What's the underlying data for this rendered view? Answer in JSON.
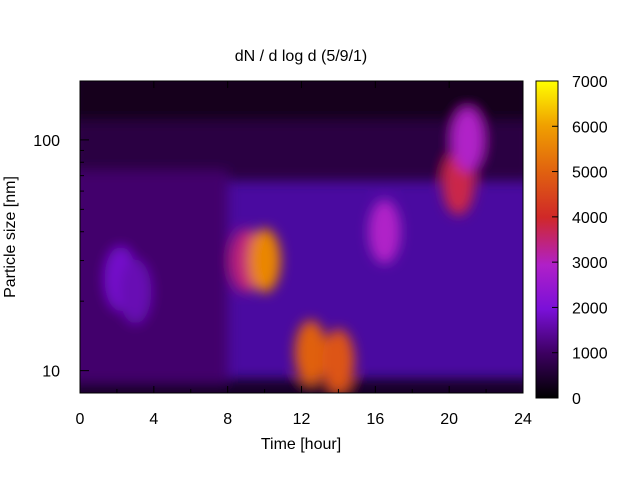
{
  "chart_data": {
    "type": "heatmap",
    "title": "dN / d log d (5/9/1)",
    "xlabel": "Time [hour]",
    "ylabel": "Particle size [nm]",
    "x_range": [
      0,
      24
    ],
    "y_range": [
      8,
      180
    ],
    "y_scale": "log",
    "x_ticks": [
      0,
      4,
      8,
      12,
      16,
      20,
      24
    ],
    "x_tick_labels": [
      "0",
      "4",
      "8",
      "12",
      "16",
      "20",
      "24"
    ],
    "y_ticks": [
      10,
      100
    ],
    "y_tick_labels": [
      "10",
      "100"
    ],
    "colorbar": {
      "range": [
        0,
        7000
      ],
      "ticks": [
        0,
        1000,
        2000,
        3000,
        4000,
        5000,
        6000,
        7000
      ],
      "tick_labels": [
        "0",
        "1000",
        "2000",
        "3000",
        "4000",
        "5000",
        "6000",
        "7000"
      ],
      "colormap": "black-purple-red-orange-yellow",
      "colors": [
        "#000000",
        "#3c0060",
        "#7a10d8",
        "#b020c8",
        "#d02828",
        "#e06010",
        "#f0a000",
        "#ffff00"
      ]
    },
    "features": [
      {
        "x": 2.2,
        "d": 25,
        "value": 1900
      },
      {
        "x": 3.0,
        "d": 22,
        "value": 1700
      },
      {
        "x": 9.0,
        "d": 30,
        "value": 3500
      },
      {
        "x": 10.0,
        "d": 30,
        "value": 5600
      },
      {
        "x": 12.5,
        "d": 12,
        "value": 5000
      },
      {
        "x": 14.0,
        "d": 11,
        "value": 4800
      },
      {
        "x": 16.5,
        "d": 40,
        "value": 3000
      },
      {
        "x": 20.5,
        "d": 65,
        "value": 3800
      },
      {
        "x": 21.0,
        "d": 100,
        "value": 3000
      }
    ]
  }
}
